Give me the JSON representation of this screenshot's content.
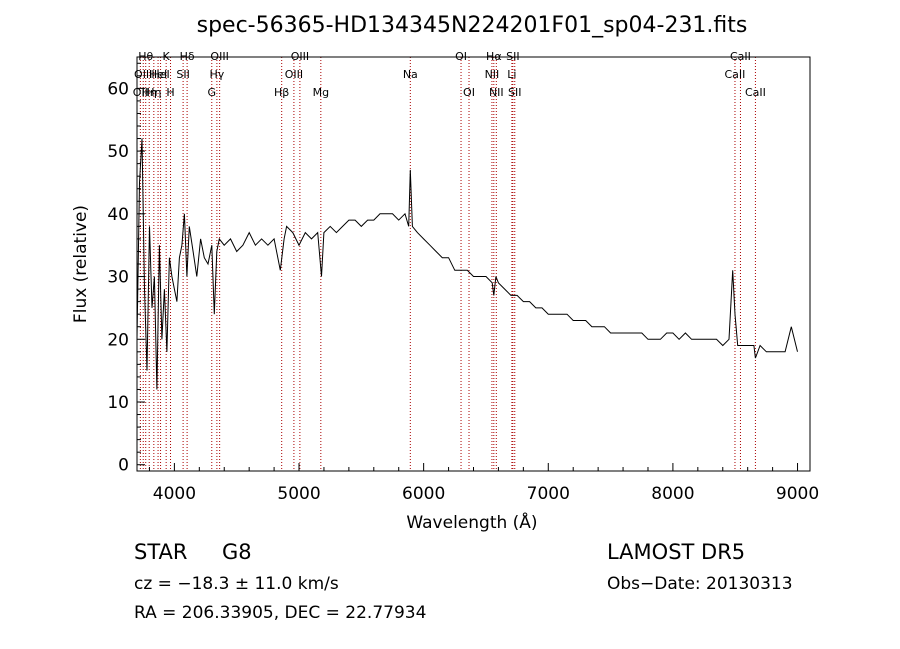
{
  "chart_data": {
    "type": "line",
    "title": "spec-56365-HD134345N224201F01_sp04-231.fits",
    "xlabel": "Wavelength (Å)",
    "ylabel": "Flux (relative)",
    "xlim": [
      3700,
      9100
    ],
    "ylim": [
      -1,
      65
    ],
    "xticks": [
      4000,
      5000,
      6000,
      7000,
      8000,
      9000
    ],
    "yticks": [
      0,
      10,
      20,
      30,
      40,
      50,
      60
    ],
    "grid": false,
    "line_color": "#000000",
    "marker_color": "#aa0000",
    "series": [
      {
        "x": [
          3700,
          3720,
          3740,
          3760,
          3780,
          3800,
          3820,
          3840,
          3860,
          3880,
          3900,
          3920,
          3940,
          3960,
          3980,
          4000,
          4020,
          4040,
          4060,
          4080,
          4100,
          4120,
          4150,
          4180,
          4210,
          4240,
          4270,
          4300,
          4320,
          4340,
          4360,
          4400,
          4450,
          4500,
          4550,
          4600,
          4650,
          4700,
          4750,
          4800,
          4850,
          4880,
          4900,
          4950,
          5000,
          5050,
          5100,
          5150,
          5180,
          5200,
          5250,
          5300,
          5350,
          5400,
          5450,
          5500,
          5550,
          5600,
          5650,
          5700,
          5750,
          5800,
          5850,
          5880,
          5893,
          5910,
          5950,
          6000,
          6050,
          6100,
          6150,
          6200,
          6250,
          6300,
          6350,
          6400,
          6450,
          6500,
          6550,
          6563,
          6580,
          6600,
          6650,
          6700,
          6750,
          6800,
          6850,
          6900,
          6950,
          7000,
          7050,
          7100,
          7150,
          7200,
          7250,
          7300,
          7350,
          7400,
          7450,
          7500,
          7550,
          7600,
          7650,
          7700,
          7750,
          7800,
          7850,
          7900,
          7950,
          8000,
          8050,
          8100,
          8150,
          8200,
          8250,
          8300,
          8350,
          8400,
          8450,
          8480,
          8498,
          8520,
          8542,
          8560,
          8600,
          8650,
          8662,
          8700,
          8750,
          8800,
          8850,
          8900,
          8950,
          9000
        ],
        "y": [
          20,
          45,
          52,
          28,
          15,
          38,
          25,
          30,
          12,
          35,
          20,
          28,
          18,
          33,
          30,
          28,
          26,
          33,
          35,
          40,
          30,
          38,
          34,
          30,
          36,
          33,
          32,
          35,
          24,
          34,
          36,
          35,
          36,
          34,
          35,
          37,
          35,
          36,
          35,
          36,
          31,
          36,
          38,
          37,
          35,
          37,
          36,
          37,
          30,
          37,
          38,
          37,
          38,
          39,
          39,
          38,
          39,
          39,
          40,
          40,
          40,
          39,
          40,
          38,
          47,
          38,
          37,
          36,
          35,
          34,
          33,
          33,
          31,
          31,
          31,
          30,
          30,
          30,
          29,
          27,
          30,
          29,
          28,
          27,
          27,
          26,
          26,
          25,
          25,
          24,
          24,
          24,
          24,
          23,
          23,
          23,
          22,
          22,
          22,
          21,
          21,
          21,
          21,
          21,
          21,
          20,
          20,
          20,
          21,
          21,
          20,
          21,
          20,
          20,
          20,
          20,
          20,
          19,
          20,
          31,
          24,
          19,
          19,
          19,
          19,
          19,
          17,
          19,
          18,
          18,
          18,
          18,
          22,
          18
        ]
      }
    ],
    "lines": [
      {
        "x": 3727,
        "label": "OII",
        "row": 2
      },
      {
        "x": 3750,
        "label": "OIII",
        "row": 1
      },
      {
        "x": 3770,
        "label": "Hθ",
        "row": 0
      },
      {
        "x": 3798,
        "label": "Hη",
        "row": 2
      },
      {
        "x": 3835,
        "label": "Hη",
        "row": 2
      },
      {
        "x": 3869,
        "label": "HeI",
        "row": 1
      },
      {
        "x": 3889,
        "label": "HeI",
        "row": 1
      },
      {
        "x": 3934,
        "label": "K",
        "row": 0
      },
      {
        "x": 3969,
        "label": "H",
        "row": 2
      },
      {
        "x": 4070,
        "label": "SII",
        "row": 1
      },
      {
        "x": 4102,
        "label": "Hδ",
        "row": 0
      },
      {
        "x": 4300,
        "label": "G",
        "row": 2
      },
      {
        "x": 4341,
        "label": "Hγ",
        "row": 1
      },
      {
        "x": 4363,
        "label": "OIII",
        "row": 0
      },
      {
        "x": 4861,
        "label": "Hβ",
        "row": 2
      },
      {
        "x": 4959,
        "label": "OIII",
        "row": 1
      },
      {
        "x": 5007,
        "label": "OIII",
        "row": 0
      },
      {
        "x": 5175,
        "label": "Mg",
        "row": 2
      },
      {
        "x": 5893,
        "label": "Na",
        "row": 1
      },
      {
        "x": 6300,
        "label": "OI",
        "row": 0
      },
      {
        "x": 6364,
        "label": "OI",
        "row": 2
      },
      {
        "x": 6548,
        "label": "NII",
        "row": 1
      },
      {
        "x": 6563,
        "label": "Hα",
        "row": 0
      },
      {
        "x": 6583,
        "label": "NII",
        "row": 2
      },
      {
        "x": 6708,
        "label": "Li",
        "row": 1
      },
      {
        "x": 6716,
        "label": "SII",
        "row": 0
      },
      {
        "x": 6731,
        "label": "SII",
        "row": 2
      },
      {
        "x": 8498,
        "label": "CaII",
        "row": 1
      },
      {
        "x": 8542,
        "label": "CaII",
        "row": 0
      },
      {
        "x": 8662,
        "label": "CaII",
        "row": 2
      }
    ]
  },
  "footer": {
    "object_class": "STAR",
    "subclass": "G8",
    "survey": "LAMOST  DR5",
    "cz": "cz = −18.3 ± 11.0 km/s",
    "obs_date": "Obs−Date: 20130313",
    "radec": "RA = 206.33905, DEC =  22.77934"
  }
}
